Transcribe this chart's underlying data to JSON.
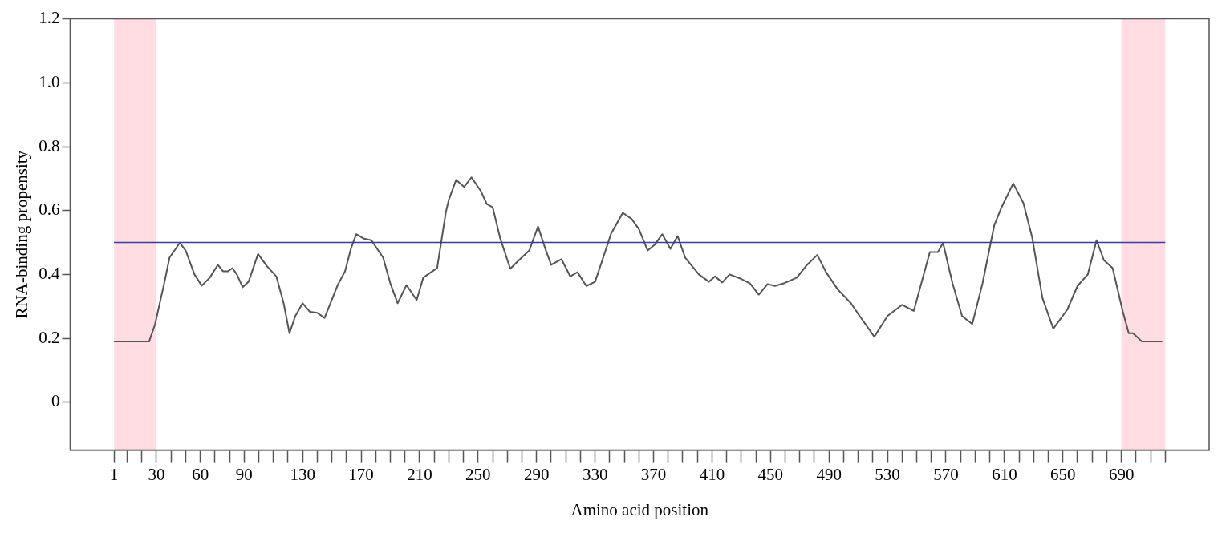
{
  "chart_data": {
    "type": "line",
    "xlabel": "Amino acid position",
    "ylabel": "RNA-binding propensity",
    "xlim": [
      -29,
      750
    ],
    "ylim": [
      -0.15,
      1.2
    ],
    "xticks": [
      1,
      {
        "value": 10,
        "label": null
      },
      {
        "value": 20,
        "label": null
      },
      30,
      {
        "value": 40,
        "label": null
      },
      {
        "value": 50,
        "label": null
      },
      60,
      {
        "value": 70,
        "label": null
      },
      {
        "value": 80,
        "label": null
      },
      90,
      {
        "value": 100,
        "label": null
      },
      {
        "value": 110,
        "label": null
      },
      {
        "value": 120,
        "label": null
      },
      130,
      {
        "value": 140,
        "label": null
      },
      {
        "value": 150,
        "label": null
      },
      {
        "value": 160,
        "label": null
      },
      170,
      {
        "value": 180,
        "label": null
      },
      {
        "value": 190,
        "label": null
      },
      {
        "value": 200,
        "label": null
      },
      210,
      {
        "value": 220,
        "label": null
      },
      {
        "value": 230,
        "label": null
      },
      {
        "value": 240,
        "label": null
      },
      250,
      {
        "value": 260,
        "label": null
      },
      {
        "value": 270,
        "label": null
      },
      {
        "value": 280,
        "label": null
      },
      290,
      {
        "value": 300,
        "label": null
      },
      {
        "value": 310,
        "label": null
      },
      {
        "value": 320,
        "label": null
      },
      330,
      {
        "value": 340,
        "label": null
      },
      {
        "value": 350,
        "label": null
      },
      {
        "value": 360,
        "label": null
      },
      370,
      {
        "value": 380,
        "label": null
      },
      {
        "value": 390,
        "label": null
      },
      {
        "value": 400,
        "label": null
      },
      410,
      {
        "value": 420,
        "label": null
      },
      {
        "value": 430,
        "label": null
      },
      {
        "value": 440,
        "label": null
      },
      450,
      {
        "value": 460,
        "label": null
      },
      {
        "value": 470,
        "label": null
      },
      {
        "value": 480,
        "label": null
      },
      490,
      {
        "value": 500,
        "label": null
      },
      {
        "value": 510,
        "label": null
      },
      {
        "value": 520,
        "label": null
      },
      530,
      {
        "value": 540,
        "label": null
      },
      {
        "value": 550,
        "label": null
      },
      {
        "value": 560,
        "label": null
      },
      570,
      {
        "value": 580,
        "label": null
      },
      {
        "value": 590,
        "label": null
      },
      {
        "value": 600,
        "label": null
      },
      610,
      {
        "value": 620,
        "label": null
      },
      {
        "value": 630,
        "label": null
      },
      {
        "value": 640,
        "label": null
      },
      650,
      {
        "value": 660,
        "label": null
      },
      {
        "value": 670,
        "label": null
      },
      {
        "value": 680,
        "label": null
      },
      690,
      {
        "value": 700,
        "label": null
      },
      {
        "value": 710,
        "label": null
      },
      {
        "value": 720,
        "label": null
      }
    ],
    "yticks": [
      0,
      0.2,
      0.4,
      0.6,
      0.8,
      {
        "value": 1,
        "label": "1.0"
      },
      1.2
    ],
    "grid": false,
    "legend": false,
    "marker": "none",
    "line_style": "solid",
    "x": [
      1,
      25,
      29,
      35.7,
      39,
      46,
      50,
      56,
      61,
      66.5,
      72,
      75.5,
      79,
      82,
      85,
      89,
      93,
      99.5,
      105.6,
      112,
      117,
      121,
      125,
      130,
      135,
      140,
      145,
      149,
      154,
      159,
      163,
      166.6,
      172,
      177,
      185,
      190,
      195,
      201,
      208,
      212.5,
      222,
      228,
      230,
      235,
      240.5,
      245.5,
      252,
      256,
      260,
      265,
      272,
      278,
      285,
      291,
      296,
      300,
      307,
      313,
      318,
      324,
      330,
      335.6,
      341,
      349,
      355,
      360,
      366,
      371,
      376,
      381.5,
      386.5,
      391.6,
      401,
      408,
      412,
      417,
      422,
      429,
      436,
      442,
      448,
      453,
      459,
      468,
      475,
      482,
      488,
      496,
      505,
      511,
      521,
      530,
      540,
      548,
      559,
      564.5,
      568,
      574.5,
      581,
      588,
      595,
      603,
      608,
      616,
      623,
      629,
      636,
      643.4,
      653,
      660,
      667,
      673,
      678,
      684,
      691,
      695,
      698,
      704,
      718
    ],
    "series": [
      {
        "color": "#555555",
        "values": [
          0.19,
          0.19,
          0.243,
          0.38,
          0.453,
          0.499,
          0.475,
          0.4,
          0.365,
          0.39,
          0.43,
          0.41,
          0.41,
          0.42,
          0.4,
          0.36,
          0.377,
          0.464,
          0.426,
          0.394,
          0.31,
          0.216,
          0.27,
          0.31,
          0.283,
          0.28,
          0.264,
          0.31,
          0.367,
          0.41,
          0.48,
          0.526,
          0.512,
          0.507,
          0.453,
          0.372,
          0.31,
          0.367,
          0.32,
          0.39,
          0.42,
          0.596,
          0.634,
          0.696,
          0.674,
          0.704,
          0.66,
          0.62,
          0.61,
          0.515,
          0.418,
          0.445,
          0.475,
          0.55,
          0.48,
          0.43,
          0.448,
          0.394,
          0.407,
          0.364,
          0.377,
          0.453,
          0.528,
          0.593,
          0.574,
          0.542,
          0.475,
          0.494,
          0.526,
          0.48,
          0.52,
          0.453,
          0.4,
          0.377,
          0.394,
          0.375,
          0.4,
          0.388,
          0.372,
          0.337,
          0.37,
          0.364,
          0.372,
          0.39,
          0.43,
          0.461,
          0.407,
          0.353,
          0.31,
          0.27,
          0.205,
          0.27,
          0.305,
          0.286,
          0.47,
          0.47,
          0.499,
          0.372,
          0.27,
          0.245,
          0.372,
          0.553,
          0.61,
          0.685,
          0.623,
          0.515,
          0.326,
          0.23,
          0.29,
          0.364,
          0.4,
          0.507,
          0.445,
          0.42,
          0.283,
          0.216,
          0.216,
          0.19,
          0.19
        ]
      }
    ],
    "ref_lines": [
      {
        "axis": "y",
        "value": 0.5,
        "color": "#3a3a9a"
      }
    ],
    "bands": [
      {
        "axis": "x",
        "from": 1,
        "to": 30,
        "color": "#ffdde3"
      },
      {
        "axis": "x",
        "from": 690,
        "to": 720,
        "color": "#ffdde3"
      }
    ]
  }
}
